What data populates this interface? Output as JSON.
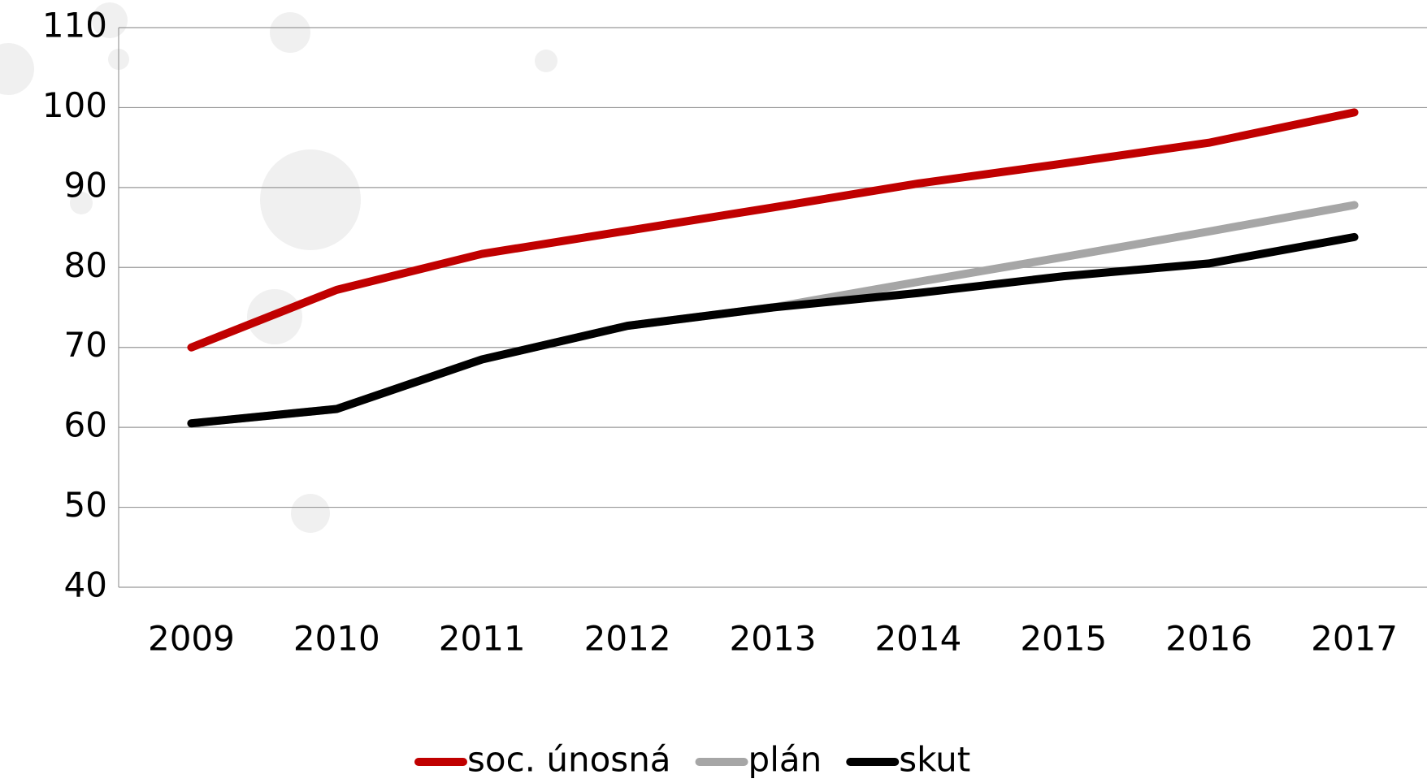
{
  "chart_data": {
    "type": "line",
    "categories": [
      "2009",
      "2010",
      "2011",
      "2012",
      "2013",
      "2014",
      "2015",
      "2016",
      "2017"
    ],
    "series": [
      {
        "name": "soc. únosná",
        "color": "#c00000",
        "values": [
          70,
          77.2,
          81.7,
          84.6,
          87.5,
          90.5,
          93,
          95.6,
          99.4
        ]
      },
      {
        "name": "plán",
        "color": "#a6a6a6",
        "values": [
          60.5,
          62.3,
          68.5,
          72.7,
          75,
          78.2,
          81.3,
          84.5,
          87.8
        ]
      },
      {
        "name": "skut",
        "color": "#000000",
        "values": [
          60.5,
          62.3,
          68.5,
          72.7,
          75,
          76.8,
          78.9,
          80.5,
          83.8
        ]
      }
    ],
    "ylim": [
      40,
      110
    ],
    "yticks": [
      40,
      50,
      60,
      70,
      80,
      90,
      100,
      110
    ],
    "grid": true,
    "legend": "bottom"
  }
}
